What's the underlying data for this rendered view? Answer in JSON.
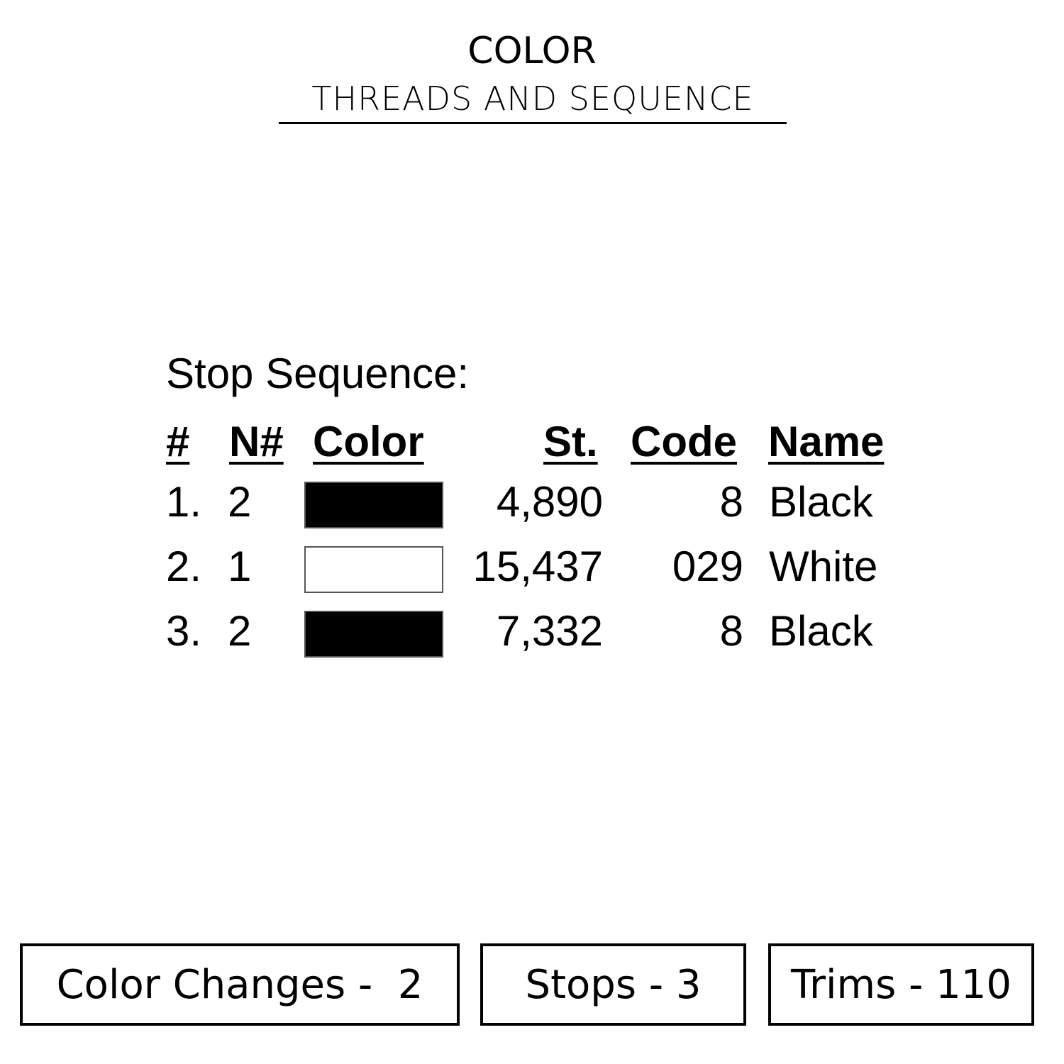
{
  "title": "COLOR",
  "subtitle": "THREADS AND SEQUENCE",
  "sequence_label": "Stop Sequence:",
  "headers": [
    "#",
    "N#",
    "Color",
    "St.",
    "Code",
    "Name"
  ],
  "rows": [
    {
      "num": "1.",
      "needle": "2",
      "color": "#000000",
      "stitches": "4,890",
      "code": "8",
      "name": "Black"
    },
    {
      "num": "2.",
      "needle": "1",
      "color": "#ffffff",
      "stitches": "15,437",
      "code": "029",
      "name": "White"
    },
    {
      "num": "3.",
      "needle": "2",
      "color": "#000000",
      "stitches": "7,332",
      "code": "8",
      "name": "Black"
    }
  ],
  "stats": {
    "color_changes": "Color Changes -  2",
    "stops": "Stops - 3",
    "trims": "Trims - 110"
  }
}
